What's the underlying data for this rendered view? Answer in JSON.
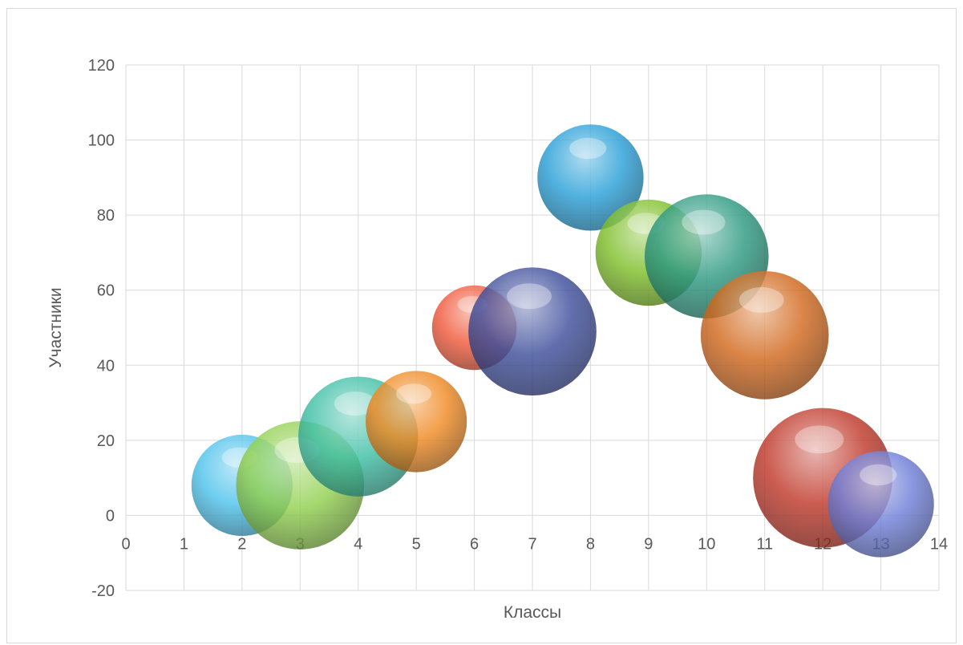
{
  "chart_data": {
    "type": "bubble",
    "title": "",
    "xlabel": "Классы",
    "ylabel": "Участники",
    "xlim": [
      0,
      14
    ],
    "ylim": [
      -20,
      120
    ],
    "x_ticks": [
      "0",
      "1",
      "2",
      "3",
      "4",
      "5",
      "6",
      "7",
      "8",
      "9",
      "10",
      "11",
      "12",
      "13",
      "14"
    ],
    "y_ticks": [
      "-20",
      "0",
      "20",
      "40",
      "60",
      "80",
      "100",
      "120"
    ],
    "grid": true,
    "legend": "none",
    "points": [
      {
        "x": 2,
        "y": 8,
        "size": 5,
        "color": "#4fc3ec"
      },
      {
        "x": 3,
        "y": 8,
        "size": 8,
        "color": "#92d050"
      },
      {
        "x": 4,
        "y": 21,
        "size": 7,
        "color": "#3fbfa6"
      },
      {
        "x": 5,
        "y": 25,
        "size": 5,
        "color": "#f08a24"
      },
      {
        "x": 6,
        "y": 50,
        "size": 3.5,
        "color": "#f05a3c"
      },
      {
        "x": 7,
        "y": 49,
        "size": 8,
        "color": "#3f4f9c"
      },
      {
        "x": 8,
        "y": 90,
        "size": 5.5,
        "color": "#2aa0d8"
      },
      {
        "x": 9,
        "y": 70,
        "size": 5.5,
        "color": "#7fbf2a"
      },
      {
        "x": 10,
        "y": 69,
        "size": 7.5,
        "color": "#2e9a82"
      },
      {
        "x": 11,
        "y": 48,
        "size": 8,
        "color": "#d2691e"
      },
      {
        "x": 12,
        "y": 10,
        "size": 9.5,
        "color": "#c0392b"
      },
      {
        "x": 13,
        "y": 3,
        "size": 5.5,
        "color": "#6f7fd8"
      }
    ]
  }
}
